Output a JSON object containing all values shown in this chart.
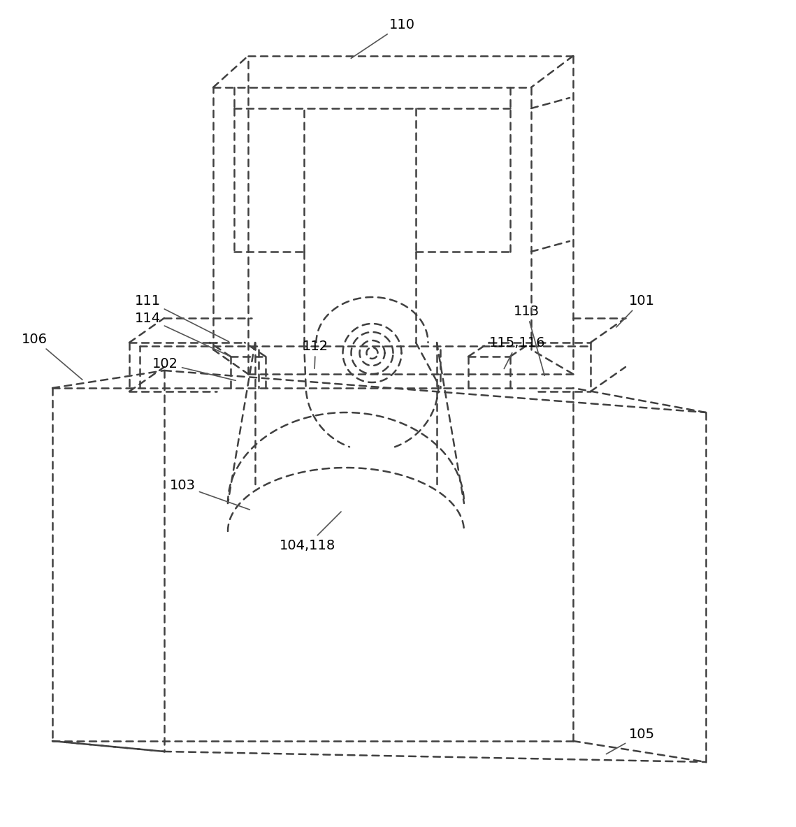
{
  "bg_color": "#ffffff",
  "line_color": "#404040",
  "line_width": 1.8,
  "label_fontsize": 14,
  "label_color": "#000000",
  "dash_pattern": [
    4,
    3
  ]
}
